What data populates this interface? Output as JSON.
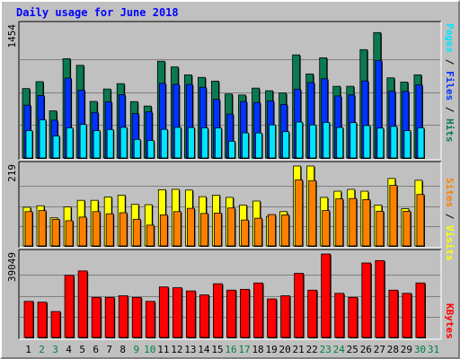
{
  "title": "Daily usage for June 2018",
  "colors": {
    "hits": "#0A7A50",
    "files": "#0033FF",
    "pages": "#00E5FF",
    "visits": "#FFFF00",
    "sites": "#FF8000",
    "kbytes": "#FF0000",
    "weekday_label": "#000000",
    "weekend_label": "#008040"
  },
  "chart_data": [
    {
      "type": "bar",
      "title": "Daily usage for June 2018",
      "categories": [
        "1",
        "2",
        "3",
        "4",
        "5",
        "6",
        "7",
        "8",
        "9",
        "10",
        "11",
        "12",
        "13",
        "14",
        "15",
        "16",
        "17",
        "18",
        "19",
        "20",
        "21",
        "22",
        "23",
        "24",
        "25",
        "26",
        "27",
        "28",
        "29",
        "30",
        "31"
      ],
      "weekend_days": [
        "2",
        "3",
        "9",
        "10",
        "16",
        "17",
        "23",
        "24",
        "30",
        "31"
      ],
      "ymax_label": "1454",
      "ylim": [
        0,
        1454
      ],
      "legend": [
        "Pages",
        "Files",
        "Hits"
      ],
      "series": [
        {
          "name": "Hits",
          "values": [
            765,
            841,
            519,
            1094,
            1021,
            623,
            760,
            819,
            621,
            572,
            1066,
            1003,
            916,
            888,
            847,
            705,
            694,
            770,
            741,
            716,
            1136,
            926,
            1104,
            790,
            790,
            1194,
            1382,
            883,
            836,
            916,
            null
          ]
        },
        {
          "name": "Files",
          "values": [
            582,
            688,
            417,
            880,
            748,
            502,
            619,
            698,
            489,
            508,
            822,
            811,
            810,
            779,
            646,
            484,
            622,
            611,
            629,
            589,
            758,
            831,
            873,
            683,
            695,
            849,
            1076,
            735,
            734,
            806,
            null
          ]
        },
        {
          "name": "Pages",
          "values": [
            302,
            420,
            242,
            331,
            369,
            301,
            313,
            337,
            204,
            192,
            315,
            337,
            335,
            332,
            331,
            184,
            276,
            275,
            364,
            290,
            396,
            364,
            391,
            336,
            389,
            357,
            329,
            348,
            301,
            332,
            null
          ]
        }
      ]
    },
    {
      "type": "bar",
      "categories": [
        "1",
        "2",
        "3",
        "4",
        "5",
        "6",
        "7",
        "8",
        "9",
        "10",
        "11",
        "12",
        "13",
        "14",
        "15",
        "16",
        "17",
        "18",
        "19",
        "20",
        "21",
        "22",
        "23",
        "24",
        "25",
        "26",
        "27",
        "28",
        "29",
        "30",
        "31"
      ],
      "ymax_label": "219",
      "ylim": [
        0,
        219
      ],
      "legend": [
        "Sites",
        "Visits"
      ],
      "series": [
        {
          "name": "Visits",
          "values": [
            106,
            110,
            77,
            107,
            125,
            125,
            134,
            139,
            114,
            113,
            154,
            155,
            153,
            135,
            139,
            133,
            112,
            123,
            81,
            94,
            219,
            219,
            133,
            150,
            155,
            150,
            112,
            185,
            102,
            180,
            null
          ]
        },
        {
          "name": "Sites",
          "values": [
            94,
            97,
            73,
            69,
            79,
            94,
            88,
            91,
            73,
            57,
            85,
            94,
            103,
            89,
            90,
            104,
            71,
            76,
            86,
            85,
            181,
            179,
            97,
            129,
            130,
            127,
            95,
            166,
            95,
            141,
            null
          ]
        }
      ]
    },
    {
      "type": "bar",
      "categories": [
        "1",
        "2",
        "3",
        "4",
        "5",
        "6",
        "7",
        "8",
        "9",
        "10",
        "11",
        "12",
        "13",
        "14",
        "15",
        "16",
        "17",
        "18",
        "19",
        "20",
        "21",
        "22",
        "23",
        "24",
        "25",
        "26",
        "27",
        "28",
        "29",
        "30",
        "31"
      ],
      "ymax_label": "39049",
      "ylim": [
        0,
        39049
      ],
      "legend": [
        "KBytes"
      ],
      "series": [
        {
          "name": "KBytes",
          "values": [
            16891,
            16516,
            12138,
            29079,
            31142,
            18770,
            18770,
            19503,
            18759,
            16891,
            23637,
            23257,
            21775,
            19892,
            25133,
            22144,
            22526,
            25513,
            18034,
            19503,
            30010,
            22144,
            39049,
            20653,
            18770,
            34848,
            35974,
            22144,
            20653,
            25513,
            null
          ]
        }
      ]
    }
  ]
}
